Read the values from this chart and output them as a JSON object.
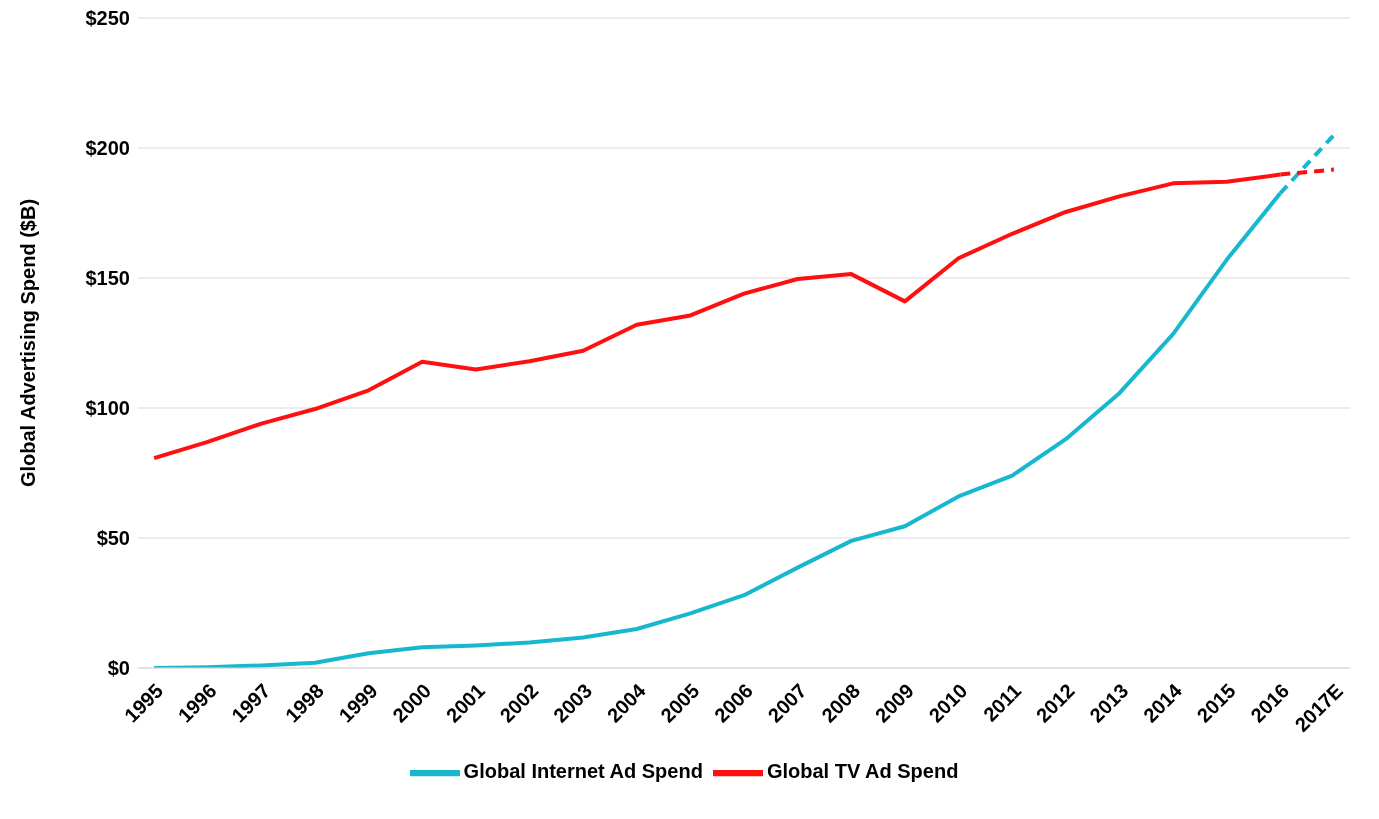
{
  "chart_data": {
    "type": "line",
    "ylabel": "Global Advertising Spend ($B)",
    "categories": [
      "1995",
      "1996",
      "1997",
      "1998",
      "1999",
      "2000",
      "2001",
      "2002",
      "2003",
      "2004",
      "2005",
      "2006",
      "2007",
      "2008",
      "2009",
      "2010",
      "2011",
      "2012",
      "2013",
      "2014",
      "2015",
      "2016",
      "2017E"
    ],
    "series": [
      {
        "name": "Global Internet Ad Spend",
        "color": "#17b8cf",
        "line_style": "solid",
        "values": [
          0,
          0.3,
          1,
          2,
          5.7,
          8,
          8.7,
          9.8,
          11.7,
          15,
          21,
          28,
          38.6,
          48.9,
          54.5,
          66,
          74,
          88,
          105.7,
          128.4,
          157,
          182.6,
          null
        ]
      },
      {
        "name": "Global TV Ad Spend",
        "color": "#ff1010",
        "line_style": "solid",
        "values": [
          80.7,
          87,
          94,
          99.6,
          106.8,
          117.8,
          114.8,
          118,
          122,
          132,
          135.6,
          144,
          149.6,
          151.5,
          141,
          157.6,
          167,
          175.4,
          181.4,
          186.4,
          187,
          189.8,
          null
        ]
      },
      {
        "color": "#17b8cf",
        "line_style": "dashed",
        "values": [
          null,
          null,
          null,
          null,
          null,
          null,
          null,
          null,
          null,
          null,
          null,
          null,
          null,
          null,
          null,
          null,
          null,
          null,
          null,
          null,
          null,
          182.6,
          205
        ]
      },
      {
        "color": "#ff1010",
        "line_style": "dashed",
        "values": [
          null,
          null,
          null,
          null,
          null,
          null,
          null,
          null,
          null,
          null,
          null,
          null,
          null,
          null,
          null,
          null,
          null,
          null,
          null,
          null,
          null,
          189.8,
          191.7
        ]
      }
    ],
    "ylim": [
      0,
      250
    ],
    "yticks": [
      {
        "value": 0,
        "label": "$0"
      },
      {
        "value": 50,
        "label": "$50"
      },
      {
        "value": 100,
        "label": "$100"
      },
      {
        "value": 150,
        "label": "$150"
      },
      {
        "value": 200,
        "label": "$200"
      },
      {
        "value": 250,
        "label": "$250"
      }
    ],
    "grid": "y",
    "legend": "bottom",
    "marker": "none"
  }
}
